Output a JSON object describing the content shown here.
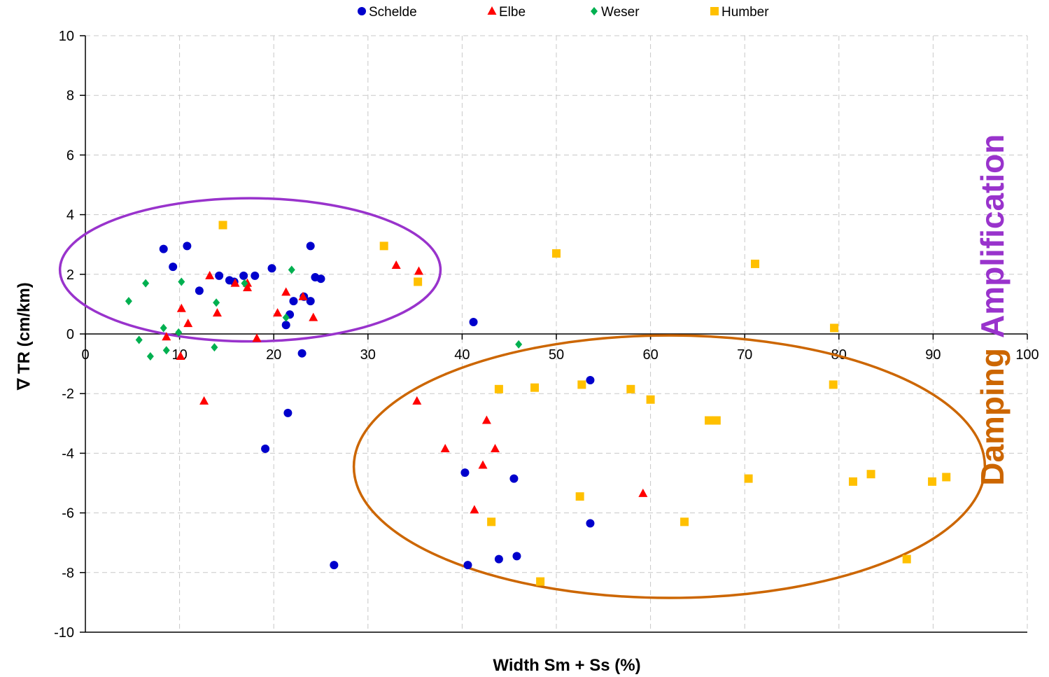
{
  "chart_data": {
    "type": "scatter",
    "xlabel": "Width Sm + Ss (%)",
    "ylabel": "∇ TR (cm/km)",
    "xlim": [
      0,
      100
    ],
    "ylim": [
      -10,
      10
    ],
    "x_ticks": [
      0,
      10,
      20,
      30,
      40,
      50,
      60,
      70,
      80,
      90,
      100
    ],
    "y_ticks": [
      -10,
      -8,
      -6,
      -4,
      -2,
      0,
      2,
      4,
      6,
      8,
      10
    ],
    "grid": true,
    "legend_position": "top-center",
    "series": [
      {
        "name": "Schelde",
        "color": "#0000cc",
        "marker": "circle",
        "points": [
          [
            8.3,
            2.85
          ],
          [
            10.8,
            2.95
          ],
          [
            9.3,
            2.25
          ],
          [
            12.1,
            1.45
          ],
          [
            14.2,
            1.95
          ],
          [
            15.3,
            1.8
          ],
          [
            15.8,
            1.75
          ],
          [
            16.8,
            1.95
          ],
          [
            18.0,
            1.95
          ],
          [
            19.8,
            2.2
          ],
          [
            23.9,
            2.95
          ],
          [
            24.4,
            1.9
          ],
          [
            25.0,
            1.85
          ],
          [
            23.2,
            1.25
          ],
          [
            22.1,
            1.1
          ],
          [
            23.9,
            1.1
          ],
          [
            21.7,
            0.65
          ],
          [
            21.3,
            0.3
          ],
          [
            23.0,
            -0.65
          ],
          [
            41.2,
            0.4
          ],
          [
            21.5,
            -2.65
          ],
          [
            19.1,
            -3.85
          ],
          [
            26.4,
            -7.75
          ],
          [
            40.3,
            -4.65
          ],
          [
            45.5,
            -4.85
          ],
          [
            53.6,
            -1.55
          ],
          [
            53.6,
            -6.35
          ],
          [
            40.6,
            -7.75
          ],
          [
            43.9,
            -7.55
          ],
          [
            45.8,
            -7.45
          ]
        ]
      },
      {
        "name": "Elbe",
        "color": "#ff0000",
        "marker": "triangle",
        "points": [
          [
            13.2,
            1.95
          ],
          [
            15.9,
            1.7
          ],
          [
            17.2,
            1.7
          ],
          [
            17.2,
            1.55
          ],
          [
            21.3,
            1.4
          ],
          [
            23.1,
            1.25
          ],
          [
            10.2,
            0.85
          ],
          [
            14.0,
            0.7
          ],
          [
            10.9,
            0.35
          ],
          [
            20.4,
            0.7
          ],
          [
            24.2,
            0.55
          ],
          [
            18.2,
            -0.15
          ],
          [
            8.6,
            -0.1
          ],
          [
            10.1,
            -0.75
          ],
          [
            12.6,
            -2.25
          ],
          [
            33.0,
            2.3
          ],
          [
            35.4,
            2.1
          ],
          [
            35.2,
            -2.25
          ],
          [
            38.2,
            -3.85
          ],
          [
            42.6,
            -2.9
          ],
          [
            42.2,
            -4.4
          ],
          [
            43.5,
            -3.85
          ],
          [
            41.3,
            -5.9
          ],
          [
            59.2,
            -5.35
          ]
        ]
      },
      {
        "name": "Weser",
        "color": "#00b050",
        "marker": "diamond",
        "points": [
          [
            4.6,
            1.1
          ],
          [
            6.4,
            1.7
          ],
          [
            10.2,
            1.75
          ],
          [
            13.9,
            1.05
          ],
          [
            16.9,
            1.7
          ],
          [
            21.9,
            2.15
          ],
          [
            21.3,
            0.55
          ],
          [
            8.3,
            0.2
          ],
          [
            9.9,
            0.05
          ],
          [
            5.7,
            -0.2
          ],
          [
            8.6,
            -0.55
          ],
          [
            6.9,
            -0.75
          ],
          [
            13.7,
            -0.45
          ],
          [
            46.0,
            -0.35
          ]
        ]
      },
      {
        "name": "Humber",
        "color": "#ffc000",
        "marker": "square",
        "points": [
          [
            14.6,
            3.65
          ],
          [
            31.7,
            2.95
          ],
          [
            35.3,
            1.75
          ],
          [
            50.0,
            2.7
          ],
          [
            71.1,
            2.35
          ],
          [
            79.5,
            0.2
          ],
          [
            79.4,
            -1.7
          ],
          [
            43.9,
            -1.85
          ],
          [
            47.7,
            -1.8
          ],
          [
            52.7,
            -1.7
          ],
          [
            57.9,
            -1.85
          ],
          [
            60.0,
            -2.2
          ],
          [
            66.2,
            -2.9
          ],
          [
            67.0,
            -2.9
          ],
          [
            70.4,
            -4.85
          ],
          [
            81.5,
            -4.95
          ],
          [
            83.4,
            -4.7
          ],
          [
            89.9,
            -4.95
          ],
          [
            91.4,
            -4.8
          ],
          [
            52.5,
            -5.45
          ],
          [
            43.1,
            -6.3
          ],
          [
            63.6,
            -6.3
          ],
          [
            48.3,
            -8.3
          ],
          [
            87.2,
            -7.55
          ]
        ]
      }
    ],
    "annotations": [
      {
        "text": "Amplification",
        "color": "#9933cc"
      },
      {
        "text": "Damping",
        "color": "#cc6600"
      }
    ],
    "ellipses": [
      {
        "color": "#9933cc",
        "cx": 17.5,
        "cy": 2.15,
        "rx": 20.2,
        "ry": 2.4
      },
      {
        "color": "#cc6600",
        "cx": 62.0,
        "cy": -4.45,
        "rx": 33.5,
        "ry": 4.4
      }
    ]
  }
}
